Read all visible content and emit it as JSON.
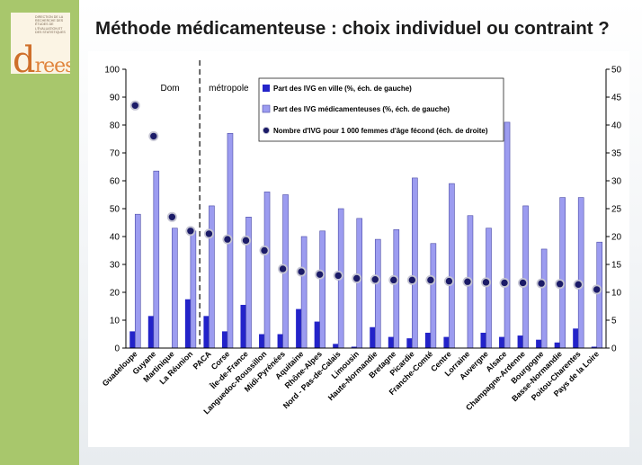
{
  "theme": {
    "sidebar": "#a8c76c",
    "logo_orange": "#e0843c"
  },
  "logo": {
    "wordmark": "drees",
    "tagline": "DIRECTION DE LA RECHERCHE DES ÉTUDES DE L'ÉVALUATION ET DES STATISTIQUES"
  },
  "slide": {
    "title": "Méthode médicamenteuse : choix individuel ou contraint ?"
  },
  "chart_data": {
    "type": "bar",
    "categories": [
      "Guadeloupe",
      "Guyane",
      "Martinique",
      "La Réunion",
      "PACA",
      "Corse",
      "Île-de-France",
      "Languedoc-Roussillon",
      "Midi-Pyrénées",
      "Aquitaine",
      "Rhône-Alpes",
      "Nord - Pas-de-Calais",
      "Limousin",
      "Haute-Normandie",
      "Bretagne",
      "Picardie",
      "Franche-Comté",
      "Centre",
      "Lorraine",
      "Auvergne",
      "Alsace",
      "Champagne-Ardenne",
      "Bourgogne",
      "Basse-Normandie",
      "Poitou-Charentes",
      "Pays de la Loire"
    ],
    "series": [
      {
        "name": "Part des IVG en ville (%, éch. de gauche)",
        "type": "bar",
        "axis": "left",
        "color": "#2323c9",
        "values": [
          6,
          11.5,
          0,
          17.5,
          11.5,
          6,
          15.5,
          5,
          5,
          14,
          9.5,
          1.5,
          0.5,
          7.5,
          4,
          3.5,
          5.5,
          4,
          0,
          5.5,
          4,
          4.5,
          3,
          2,
          7,
          0.5
        ]
      },
      {
        "name": "Part des IVG médicamenteuses (%, éch. de gauche)",
        "type": "bar",
        "axis": "left",
        "color": "#9c9cf0",
        "values": [
          48,
          63.5,
          43,
          42,
          51,
          77,
          47,
          56,
          55,
          40,
          42,
          50,
          46.5,
          39,
          42.5,
          61,
          37.5,
          59,
          47.5,
          43,
          81,
          51,
          35.5,
          54,
          54,
          38
        ]
      },
      {
        "name": "Nombre d'IVG pour 1 000 femmes d'âge fécond (éch. de droite)",
        "type": "scatter",
        "axis": "right",
        "color": "#1b1b68",
        "values": [
          43.5,
          38,
          23.5,
          21,
          20.5,
          19.5,
          19.3,
          17.5,
          14.2,
          13.7,
          13.2,
          13,
          12.5,
          12.3,
          12.2,
          12.2,
          12.2,
          12,
          11.9,
          11.8,
          11.7,
          11.7,
          11.6,
          11.5,
          11.4,
          10.5
        ]
      }
    ],
    "y_left": {
      "lim": [
        0,
        100
      ],
      "ticks": [
        0,
        10,
        20,
        30,
        40,
        50,
        60,
        70,
        80,
        90,
        100
      ]
    },
    "y_right": {
      "lim": [
        0,
        50
      ],
      "ticks": [
        0,
        5,
        10,
        15,
        20,
        25,
        30,
        35,
        40,
        45,
        50
      ]
    },
    "region_labels": {
      "left": "Dom",
      "right": "métropole"
    },
    "divider_after_category_index": 3,
    "legend": "top-center",
    "grid": false
  }
}
